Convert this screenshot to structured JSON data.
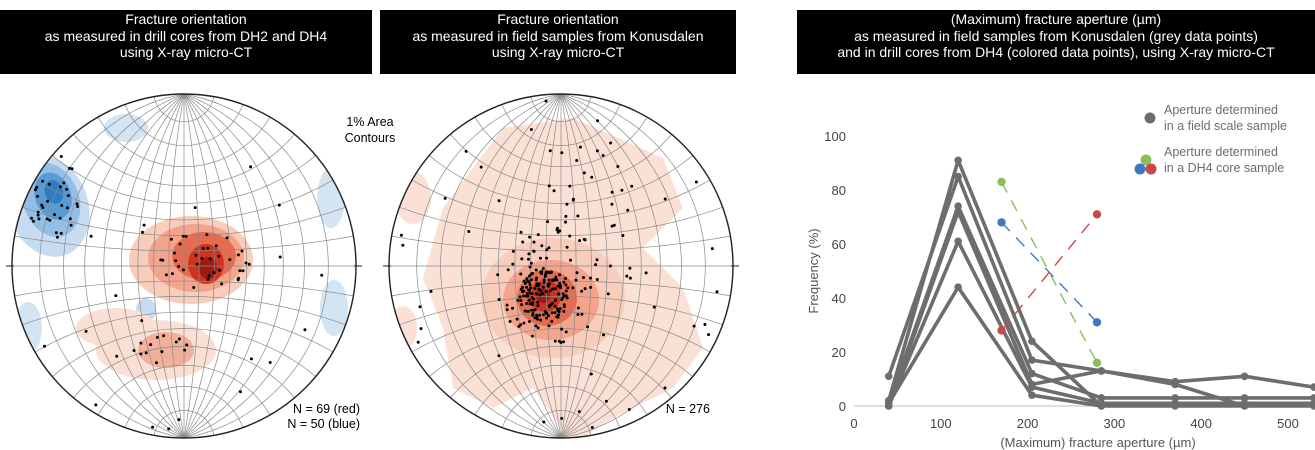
{
  "panels": {
    "left": {
      "title_lines": [
        "Fracture orientation",
        "as measured in drill cores from DH2 and DH4",
        "using X-ray micro-CT"
      ],
      "contour_note_lines": [
        "1% Area",
        "Contours"
      ],
      "n_lines": [
        "N = 69 (red)",
        "N = 50 (blue)"
      ]
    },
    "middle": {
      "title_lines": [
        "Fracture orientation",
        "as measured in field samples from Konusdalen",
        "using X-ray micro-CT"
      ],
      "n_lines": [
        "N = 276"
      ]
    },
    "right": {
      "title_lines": [
        "(Maximum) fracture aperture (µm)",
        "as measured in field samples from Konusdalen (grey data points)",
        "and in drill cores from DH4 (colored data points), using X-ray micro-CT"
      ]
    }
  },
  "colors": {
    "grey": "#6d6d6d",
    "green": "#8dbd5a",
    "blue": "#3e78c0",
    "red": "#c84848",
    "contour_red": "#e0412c",
    "contour_blue": "#2f7cc0"
  },
  "chart_data": {
    "type": "line",
    "xlabel": "(Maximum) fracture aperture (µm)",
    "ylabel": "Frequency (%)",
    "xlim": [
      0,
      530
    ],
    "ylim": [
      0,
      100
    ],
    "xticks": [
      0,
      100,
      200,
      300,
      400,
      500
    ],
    "yticks": [
      0,
      20,
      40,
      60,
      80,
      100
    ],
    "grid": false,
    "legend": {
      "position": "top-right",
      "entries": [
        {
          "label_lines": [
            "Aperture determined",
            "in a field scale sample"
          ],
          "icon": "grey"
        },
        {
          "label_lines": [
            "Aperture determined",
            "in a DH4 core sample"
          ],
          "icon": "green-blue-red"
        }
      ]
    },
    "series": [
      {
        "group": "field",
        "color": "grey",
        "x": [
          40,
          120,
          205,
          285
        ],
        "y": [
          2,
          91,
          24,
          0
        ]
      },
      {
        "group": "field",
        "color": "grey",
        "x": [
          40,
          120,
          205,
          285,
          370,
          450,
          530
        ],
        "y": [
          11,
          85,
          17,
          13,
          9,
          11,
          7
        ]
      },
      {
        "group": "field",
        "color": "grey",
        "x": [
          40,
          120,
          205,
          285,
          370,
          450,
          530
        ],
        "y": [
          1,
          74,
          12,
          3,
          3,
          3,
          3
        ]
      },
      {
        "group": "field",
        "color": "grey",
        "x": [
          40,
          120,
          205,
          285,
          370,
          450,
          530
        ],
        "y": [
          0,
          72,
          8,
          13,
          8,
          0,
          0
        ]
      },
      {
        "group": "field",
        "color": "grey",
        "x": [
          40,
          120,
          205,
          285,
          370,
          450,
          530
        ],
        "y": [
          0,
          61,
          7,
          1,
          1,
          1,
          1
        ]
      },
      {
        "group": "field",
        "color": "grey",
        "x": [
          40,
          120,
          205,
          285,
          370,
          450,
          530
        ],
        "y": [
          1,
          44,
          4,
          0,
          0,
          0,
          1
        ]
      },
      {
        "group": "core",
        "color": "green",
        "dashed": true,
        "x": [
          170,
          280
        ],
        "y": [
          83,
          16
        ]
      },
      {
        "group": "core",
        "color": "blue",
        "dashed": true,
        "x": [
          170,
          280
        ],
        "y": [
          68,
          31
        ]
      },
      {
        "group": "core",
        "color": "red",
        "dashed": true,
        "x": [
          170,
          280
        ],
        "y": [
          28,
          71
        ]
      }
    ]
  }
}
